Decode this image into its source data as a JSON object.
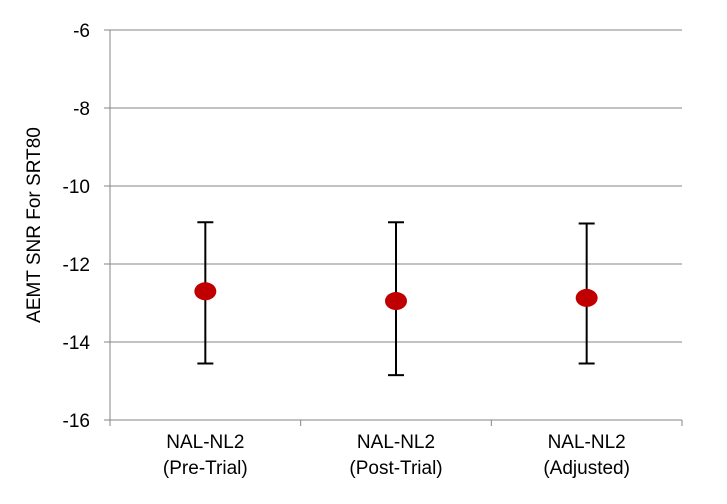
{
  "chart_data": {
    "type": "scatter",
    "title": "",
    "xlabel": "",
    "ylabel": "AEMT SNR For SRT80",
    "ylim": [
      -16,
      -6
    ],
    "yticks": [
      -6,
      -8,
      -10,
      -12,
      -14,
      -16
    ],
    "grid": true,
    "legend": "none",
    "categories": [
      [
        "NAL-NL2",
        "(Pre-Trial)"
      ],
      [
        "NAL-NL2",
        "(Post-Trial)"
      ],
      [
        "NAL-NL2",
        "(Adjusted)"
      ]
    ],
    "series": [
      {
        "values": [
          -12.7,
          -12.95,
          -12.87
        ],
        "error_low": [
          -14.55,
          -14.85,
          -14.55
        ],
        "error_high": [
          -10.93,
          -10.93,
          -10.96
        ]
      }
    ],
    "colors": {
      "marker": "#c00000",
      "error_bar": "#000000",
      "grid": "#868686",
      "axis": "#868686"
    }
  }
}
